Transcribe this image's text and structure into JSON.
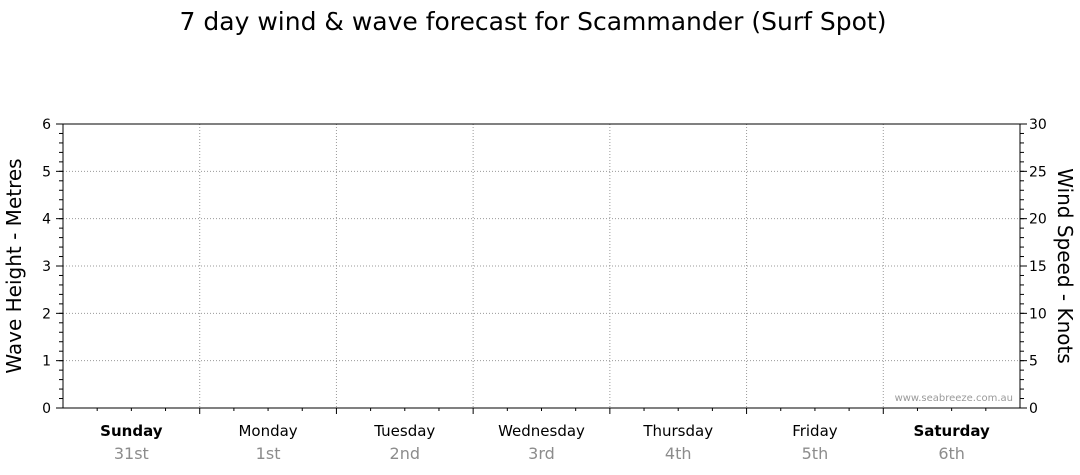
{
  "chart_data": {
    "type": "line",
    "title": "7 day wind & wave forecast for Scammander (Surf Spot)",
    "ylabel": "Wave Height - Metres",
    "y2label": "Wind Speed - Knots",
    "ylim": [
      0,
      6
    ],
    "y2lim": [
      0,
      30
    ],
    "yticks": [
      "0",
      "1",
      "2",
      "3",
      "4",
      "5",
      "6"
    ],
    "y2ticks": [
      "0",
      "5",
      "10",
      "15",
      "20",
      "25",
      "30"
    ],
    "grid": true,
    "days": [
      {
        "name": "Sunday",
        "date": "31st",
        "bold": true
      },
      {
        "name": "Monday",
        "date": "1st",
        "bold": false
      },
      {
        "name": "Tuesday",
        "date": "2nd",
        "bold": false
      },
      {
        "name": "Wednesday",
        "date": "3rd",
        "bold": false
      },
      {
        "name": "Thursday",
        "date": "4th",
        "bold": false
      },
      {
        "name": "Friday",
        "date": "5th",
        "bold": false
      },
      {
        "name": "Saturday",
        "date": "6th",
        "bold": true
      }
    ],
    "series": []
  },
  "watermark": "www.seabreeze.com.au"
}
